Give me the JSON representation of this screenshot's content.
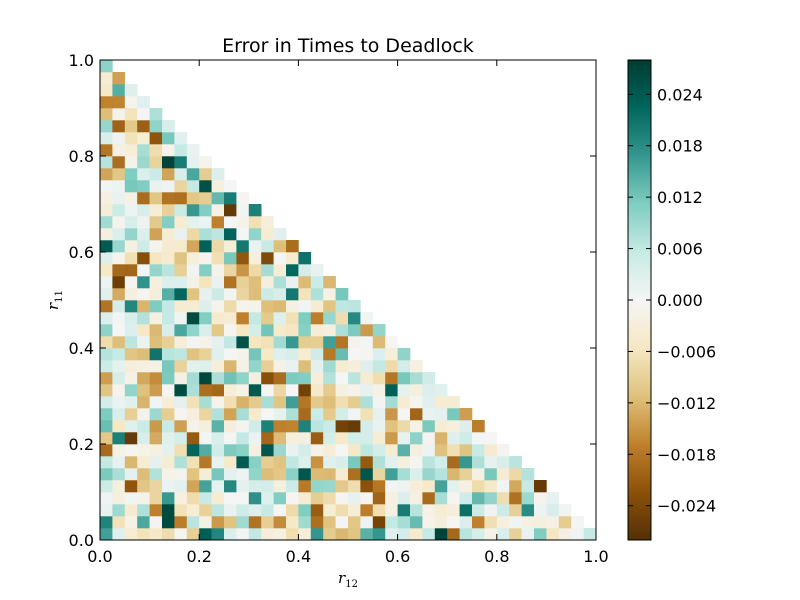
{
  "chart_data": {
    "type": "heatmap",
    "title": "Error in Times to Deadlock",
    "xlabel": {
      "symbol": "r",
      "subscript": "12"
    },
    "ylabel": {
      "symbol": "r",
      "subscript": "11"
    },
    "xlim": [
      0.0,
      1.0
    ],
    "ylim": [
      0.0,
      1.0
    ],
    "x_ticks": [
      "0.0",
      "0.2",
      "0.4",
      "0.6",
      "0.8",
      "1.0"
    ],
    "y_ticks": [
      "0.0",
      "0.2",
      "0.4",
      "0.6",
      "0.8",
      "1.0"
    ],
    "grid_size": 40,
    "domain": "triangular region r11 + r12 <= 1",
    "colormap": "BrBG",
    "vmin": -0.028,
    "vmax": 0.028,
    "colorbar_ticks": [
      "0.024",
      "0.018",
      "0.012",
      "0.006",
      "0.000",
      "−0.006",
      "−0.012",
      "−0.018",
      "−0.024"
    ],
    "colorbar_tick_values": [
      0.024,
      0.018,
      0.012,
      0.006,
      0.0,
      -0.006,
      -0.012,
      -0.018,
      -0.024
    ],
    "grid": false,
    "notable_cells": [
      {
        "r12": 0.0,
        "r11": 0.6,
        "value": 0.024
      },
      {
        "r12": 0.05,
        "r11": 0.1,
        "value": -0.022
      },
      {
        "r12": 0.28,
        "r11": 0.4,
        "value": 0.025
      },
      {
        "r12": 0.5,
        "r11": 0.22,
        "value": -0.026
      },
      {
        "r12": 0.18,
        "r11": 0.45,
        "value": 0.026
      },
      {
        "r12": 0.13,
        "r11": 0.05,
        "value": 0.026
      }
    ]
  }
}
